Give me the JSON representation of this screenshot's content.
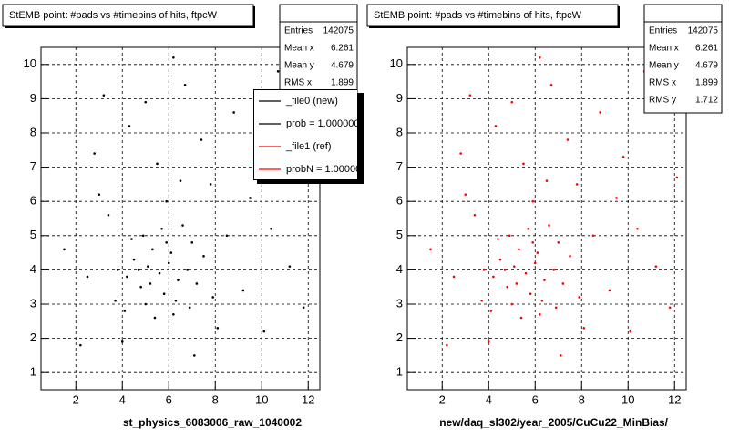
{
  "chart_data": [
    {
      "type": "scatter",
      "title": "StEMB point: #pads vs #timebins of hits, ftpcW",
      "x_label": "st_physics_6083006_raw_1040002",
      "x": [
        4.2,
        5.1,
        5.6,
        6.0,
        4.8,
        5.3,
        6.4,
        5.9,
        4.5,
        6.8,
        7.2,
        5.0,
        4.1,
        6.2,
        7.5,
        3.8,
        5.7,
        4.9,
        6.6,
        7.9,
        3.7,
        5.4,
        6.9,
        4.4,
        5.8,
        6.1,
        5.2,
        4.7,
        6.3,
        7.0,
        3.0,
        8.5,
        9.2,
        10.1,
        2.5,
        7.8,
        5.5,
        4.3,
        6.7,
        9.8,
        11.2,
        2.2,
        8.8,
        5.9,
        10.7,
        3.4,
        7.4,
        11.8,
        1.5,
        6.2,
        9.5,
        4.0,
        8.1,
        3.2,
        12.1,
        7.1,
        5.0,
        10.4,
        2.8,
        6.5
      ],
      "y": [
        3.8,
        4.1,
        3.9,
        4.2,
        3.5,
        4.6,
        3.7,
        4.8,
        4.3,
        4.0,
        3.6,
        3.0,
        2.8,
        2.7,
        4.4,
        4.0,
        5.2,
        5.0,
        5.3,
        3.2,
        3.1,
        2.6,
        2.9,
        4.9,
        3.3,
        4.5,
        3.6,
        4.0,
        3.1,
        4.8,
        6.2,
        5.0,
        3.4,
        2.2,
        3.8,
        6.5,
        7.1,
        8.2,
        9.4,
        7.3,
        4.1,
        1.8,
        8.6,
        6.0,
        9.8,
        5.6,
        7.8,
        2.9,
        4.6,
        10.2,
        6.1,
        1.9,
        2.3,
        9.1,
        6.7,
        1.5,
        8.9,
        5.2,
        7.4,
        6.6
      ],
      "color": "#000000",
      "xlim": [
        0.5,
        12.5
      ],
      "ylim": [
        0.5,
        10.5
      ],
      "xticks": [
        2,
        4,
        6,
        8,
        10,
        12
      ],
      "yticks": [
        1,
        2,
        3,
        4,
        5,
        6,
        7,
        8,
        9,
        10
      ],
      "grid": true,
      "stats": [
        {
          "label": "Entries",
          "value": 142075
        },
        {
          "label": "Mean x",
          "value": 6.261
        },
        {
          "label": "Mean y",
          "value": 4.679
        },
        {
          "label": "RMS x",
          "value": 1.899
        }
      ],
      "legend": [
        {
          "label": "_file0 (new)",
          "color": "#000000"
        },
        {
          "label": "prob = 1.000000",
          "color": "#000000"
        },
        {
          "label": "_file1 (ref)",
          "color": "#ff0000"
        },
        {
          "label": "probN = 1.00000",
          "color": "#ff0000"
        }
      ]
    },
    {
      "type": "scatter",
      "title": "StEMB point: #pads vs #timebins of hits, ftpcW",
      "x_label": "new/daq_sl302/year_2005/CuCu22_MinBias/",
      "x": [
        4.2,
        5.1,
        5.6,
        6.0,
        4.8,
        5.3,
        6.4,
        5.9,
        4.5,
        6.8,
        7.2,
        5.0,
        4.1,
        6.2,
        7.5,
        3.8,
        5.7,
        4.9,
        6.6,
        7.9,
        3.7,
        5.4,
        6.9,
        4.4,
        5.8,
        6.1,
        5.2,
        4.7,
        6.3,
        7.0,
        3.0,
        8.5,
        9.2,
        10.1,
        2.5,
        7.8,
        5.5,
        4.3,
        6.7,
        9.8,
        11.2,
        2.2,
        8.8,
        5.9,
        10.7,
        3.4,
        7.4,
        11.8,
        1.5,
        6.2,
        9.5,
        4.0,
        8.1,
        3.2,
        12.1,
        7.1,
        5.0,
        10.4,
        2.8,
        6.5
      ],
      "y": [
        3.8,
        4.1,
        3.9,
        4.2,
        3.5,
        4.6,
        3.7,
        4.8,
        4.3,
        4.0,
        3.6,
        3.0,
        2.8,
        2.7,
        4.4,
        4.0,
        5.2,
        5.0,
        5.3,
        3.2,
        3.1,
        2.6,
        2.9,
        4.9,
        3.3,
        4.5,
        3.6,
        4.0,
        3.1,
        4.8,
        6.2,
        5.0,
        3.4,
        2.2,
        3.8,
        6.5,
        7.1,
        8.2,
        9.4,
        7.3,
        4.1,
        1.8,
        8.6,
        6.0,
        9.8,
        5.6,
        7.8,
        2.9,
        4.6,
        10.2,
        6.1,
        1.9,
        2.3,
        9.1,
        6.7,
        1.5,
        8.9,
        5.2,
        7.4,
        6.6
      ],
      "color": "#ff0000",
      "xlim": [
        0.5,
        12.5
      ],
      "ylim": [
        0.5,
        10.5
      ],
      "xticks": [
        2,
        4,
        6,
        8,
        10,
        12
      ],
      "yticks": [
        1,
        2,
        3,
        4,
        5,
        6,
        7,
        8,
        9,
        10
      ],
      "grid": true,
      "stats": [
        {
          "label": "Entries",
          "value": 142075
        },
        {
          "label": "Mean x",
          "value": 6.261
        },
        {
          "label": "Mean y",
          "value": 4.679
        },
        {
          "label": "RMS x",
          "value": 1.899
        },
        {
          "label": "RMS y",
          "value": 1.712
        }
      ]
    }
  ]
}
